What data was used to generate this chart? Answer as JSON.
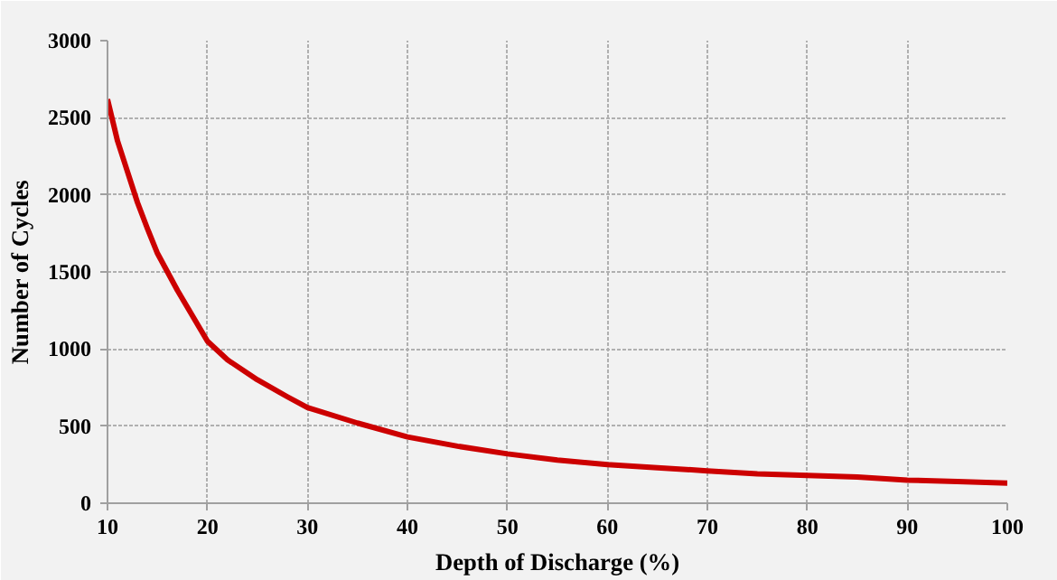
{
  "chart_data": {
    "type": "line",
    "xlabel": "Depth of Discharge (%)",
    "ylabel": "Number of Cycles",
    "x": [
      10,
      11,
      12,
      13,
      14,
      15,
      17,
      20,
      22,
      25,
      28,
      30,
      35,
      40,
      45,
      50,
      55,
      60,
      65,
      70,
      75,
      80,
      85,
      90,
      95,
      100
    ],
    "series": [
      {
        "color": "#cc0000",
        "values": [
          2620,
          2350,
          2150,
          1950,
          1780,
          1620,
          1380,
          1050,
          930,
          800,
          690,
          620,
          520,
          430,
          370,
          320,
          280,
          250,
          230,
          210,
          190,
          180,
          170,
          150,
          140,
          130
        ]
      }
    ],
    "xlim": [
      10,
      100
    ],
    "ylim": [
      0,
      3000
    ],
    "xticks": [
      10,
      20,
      30,
      40,
      50,
      60,
      70,
      80,
      90,
      100
    ],
    "yticks": [
      0,
      500,
      1000,
      1500,
      2000,
      2500,
      3000
    ],
    "grid": true,
    "marker": "none",
    "line_style": "solid"
  }
}
